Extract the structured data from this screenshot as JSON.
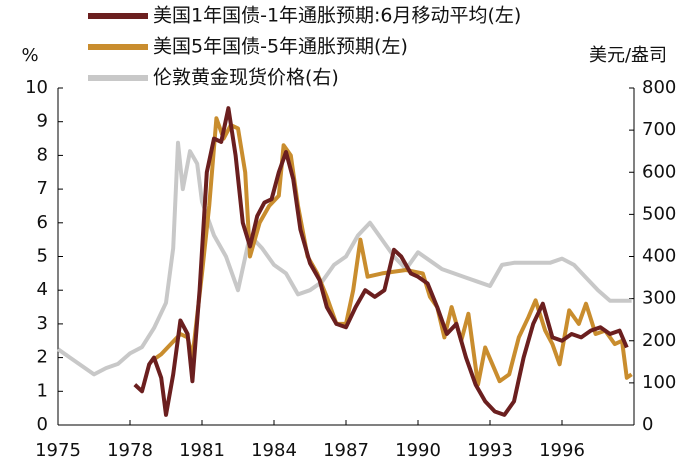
{
  "chart_data": {
    "type": "line",
    "y_label": "%",
    "y2_label": "美元/盎司",
    "xlim": [
      1975,
      1999
    ],
    "xticks": [
      1975,
      1978,
      1981,
      1984,
      1987,
      1990,
      1993,
      1996
    ],
    "ylim": [
      0,
      10
    ],
    "yticks": [
      0,
      1,
      2,
      3,
      4,
      5,
      6,
      7,
      8,
      9,
      10
    ],
    "y2lim": [
      0,
      800
    ],
    "y2ticks": [
      0,
      100,
      200,
      300,
      400,
      500,
      600,
      700,
      800
    ],
    "legend": "top-left",
    "grid": false,
    "series": [
      {
        "name": "美国1年国债-1年通胀预期:6月移动平均(左)",
        "color": "#6b1f1f",
        "axis": "y",
        "x": [
          1978.2,
          1978.5,
          1978.8,
          1979.0,
          1979.3,
          1979.5,
          1979.8,
          1980.1,
          1980.4,
          1980.6,
          1980.9,
          1981.2,
          1981.5,
          1981.8,
          1982.1,
          1982.4,
          1982.7,
          1983.0,
          1983.3,
          1983.6,
          1983.9,
          1984.2,
          1984.5,
          1984.8,
          1985.1,
          1985.5,
          1985.9,
          1986.2,
          1986.6,
          1987.0,
          1987.4,
          1987.8,
          1988.2,
          1988.6,
          1989.0,
          1989.3,
          1989.7,
          1990.0,
          1990.4,
          1990.8,
          1991.2,
          1991.6,
          1992.0,
          1992.4,
          1992.8,
          1993.2,
          1993.6,
          1994.0,
          1994.4,
          1994.8,
          1995.2,
          1995.6,
          1996.0,
          1996.4,
          1996.8,
          1997.2,
          1997.6,
          1998.0,
          1998.4,
          1998.7
        ],
        "values": [
          1.2,
          1.0,
          1.8,
          2.0,
          1.4,
          0.3,
          1.5,
          3.1,
          2.7,
          1.3,
          4.0,
          7.5,
          8.5,
          8.4,
          9.4,
          8.0,
          6.0,
          5.3,
          6.2,
          6.6,
          6.7,
          7.5,
          8.1,
          7.3,
          5.8,
          4.8,
          4.3,
          3.5,
          3.0,
          2.9,
          3.5,
          4.0,
          3.8,
          4.0,
          5.2,
          5.0,
          4.5,
          4.4,
          4.2,
          3.5,
          2.7,
          3.0,
          2.0,
          1.2,
          0.7,
          0.4,
          0.3,
          0.7,
          2.0,
          3.0,
          3.6,
          2.6,
          2.5,
          2.7,
          2.6,
          2.8,
          2.9,
          2.7,
          2.8,
          2.3
        ]
      },
      {
        "name": "美国5年国债-5年通胀预期(左)",
        "color": "#c98d2e",
        "axis": "y",
        "x": [
          1978.9,
          1979.3,
          1979.7,
          1980.1,
          1980.4,
          1980.6,
          1981.0,
          1981.3,
          1981.6,
          1981.9,
          1982.2,
          1982.5,
          1982.8,
          1983.0,
          1983.4,
          1983.8,
          1984.2,
          1984.4,
          1984.7,
          1985.0,
          1985.4,
          1985.8,
          1986.2,
          1986.6,
          1987.0,
          1987.3,
          1987.6,
          1987.9,
          1988.5,
          1989.5,
          1990.2,
          1990.5,
          1990.8,
          1991.1,
          1991.4,
          1991.8,
          1992.1,
          1992.5,
          1992.8,
          1993.1,
          1993.4,
          1993.8,
          1994.2,
          1994.6,
          1994.9,
          1995.3,
          1995.6,
          1995.9,
          1996.3,
          1996.7,
          1997.0,
          1997.4,
          1997.8,
          1998.2,
          1998.5,
          1998.7,
          1998.9
        ],
        "values": [
          1.9,
          2.1,
          2.4,
          2.7,
          2.6,
          2.0,
          4.5,
          6.5,
          9.1,
          8.5,
          8.9,
          8.8,
          7.5,
          5.0,
          6.0,
          6.5,
          6.8,
          8.3,
          8.0,
          6.5,
          5.0,
          4.5,
          3.8,
          3.0,
          3.0,
          4.0,
          5.5,
          4.4,
          4.5,
          4.6,
          4.5,
          3.8,
          3.5,
          2.6,
          3.5,
          2.5,
          3.3,
          1.2,
          2.3,
          1.8,
          1.3,
          1.5,
          2.6,
          3.2,
          3.7,
          2.8,
          2.4,
          1.8,
          3.4,
          3.0,
          3.6,
          2.7,
          2.8,
          2.4,
          2.5,
          1.4,
          1.5
        ]
      },
      {
        "name": "伦敦黄金现货价格(右)",
        "color": "#c8c8c8",
        "axis": "y2",
        "x": [
          1975.0,
          1975.5,
          1976.0,
          1976.5,
          1977.0,
          1977.5,
          1978.0,
          1978.5,
          1979.0,
          1979.5,
          1979.8,
          1980.0,
          1980.2,
          1980.5,
          1980.8,
          1981.0,
          1981.5,
          1982.0,
          1982.5,
          1983.0,
          1983.5,
          1984.0,
          1984.5,
          1985.0,
          1985.5,
          1986.0,
          1986.5,
          1987.0,
          1987.5,
          1988.0,
          1988.5,
          1989.0,
          1989.5,
          1990.0,
          1990.5,
          1991.0,
          1991.5,
          1992.0,
          1992.5,
          1993.0,
          1993.5,
          1994.0,
          1994.5,
          1995.0,
          1995.5,
          1996.0,
          1996.5,
          1997.0,
          1997.5,
          1998.0,
          1998.5,
          1998.9
        ],
        "values": [
          180,
          160,
          140,
          120,
          135,
          145,
          170,
          185,
          230,
          290,
          420,
          670,
          560,
          650,
          620,
          530,
          450,
          400,
          320,
          450,
          420,
          380,
          360,
          310,
          320,
          340,
          380,
          400,
          450,
          480,
          440,
          400,
          370,
          410,
          390,
          370,
          360,
          350,
          340,
          330,
          380,
          385,
          385,
          385,
          385,
          395,
          380,
          350,
          320,
          295,
          295,
          295
        ]
      }
    ]
  }
}
